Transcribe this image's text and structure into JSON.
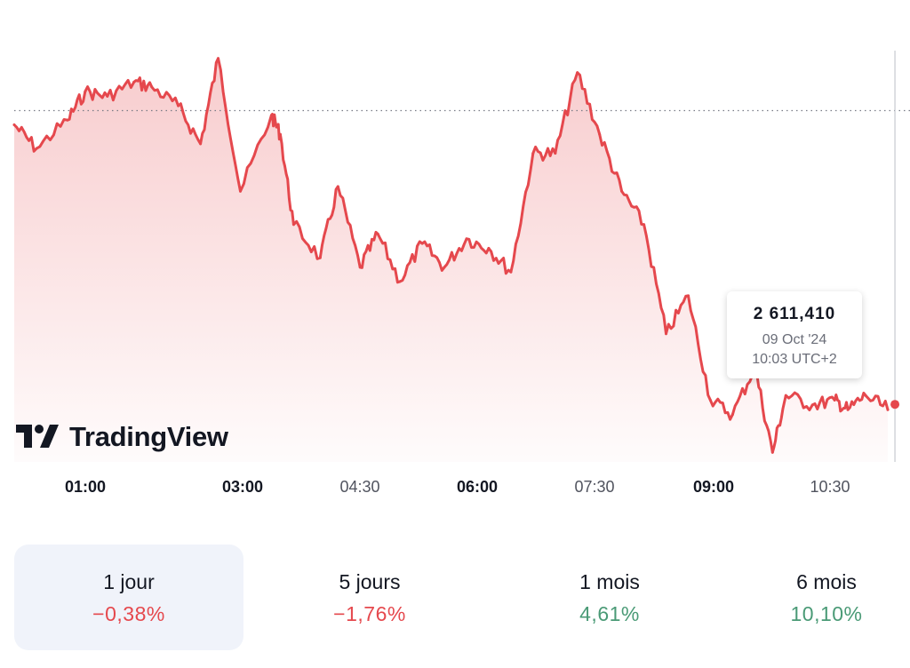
{
  "chart_data": {
    "type": "area",
    "title": "",
    "xlabel": "",
    "ylabel": "",
    "x_ticks": [
      {
        "label": "01:00",
        "major": true
      },
      {
        "label": "03:00",
        "major": true
      },
      {
        "label": "04:30",
        "major": false
      },
      {
        "label": "06:00",
        "major": true
      },
      {
        "label": "07:30",
        "major": false
      },
      {
        "label": "09:00",
        "major": true
      },
      {
        "label": "10:30",
        "major": false
      }
    ],
    "x_hours": [
      0.2,
      0.45,
      0.8,
      1.0,
      1.25,
      1.55,
      1.75,
      2.05,
      2.3,
      2.5,
      2.75,
      3.1,
      3.2,
      3.35,
      3.65,
      3.85,
      4.1,
      4.3,
      4.55,
      4.8,
      5.05,
      5.3,
      5.55,
      5.8,
      6.05,
      6.3,
      6.55,
      6.8,
      7.05,
      7.3,
      7.55,
      7.8,
      8.05,
      8.3,
      8.55,
      8.75,
      8.9,
      9.2,
      9.45,
      9.6,
      9.8,
      10.05
    ],
    "y_values": [
      2626,
      2621,
      2627,
      2633,
      2632,
      2635,
      2634,
      2630,
      2622,
      2640,
      2612,
      2628,
      2624,
      2605,
      2598,
      2613,
      2596,
      2603,
      2593,
      2601,
      2596,
      2602,
      2600,
      2595,
      2620,
      2620,
      2637,
      2624,
      2612,
      2605,
      2582,
      2590,
      2568,
      2565,
      2575,
      2557,
      2569,
      2567,
      2568,
      2566,
      2569,
      2566
    ],
    "x_range_hours": [
      0.2,
      10.3
    ],
    "ylim": [
      2555,
      2642
    ],
    "reference_price": 2629,
    "series_color": "#e5484d",
    "tooltip": {
      "price": "2 611,410",
      "date": "09 Oct '24",
      "time": "10:03 UTC+2"
    }
  },
  "brand": {
    "logo_text": "TradingView"
  },
  "periods": [
    {
      "label": "1 jour",
      "change": "−0,38%",
      "color": "#e5484d",
      "active": true
    },
    {
      "label": "5 jours",
      "change": "−1,76%",
      "color": "#e5484d",
      "active": false
    },
    {
      "label": "1 mois",
      "change": "4,61%",
      "color": "#4a9a76",
      "active": false
    },
    {
      "label": "6 mois",
      "change": "10,10%",
      "color": "#4a9a76",
      "active": false
    }
  ]
}
